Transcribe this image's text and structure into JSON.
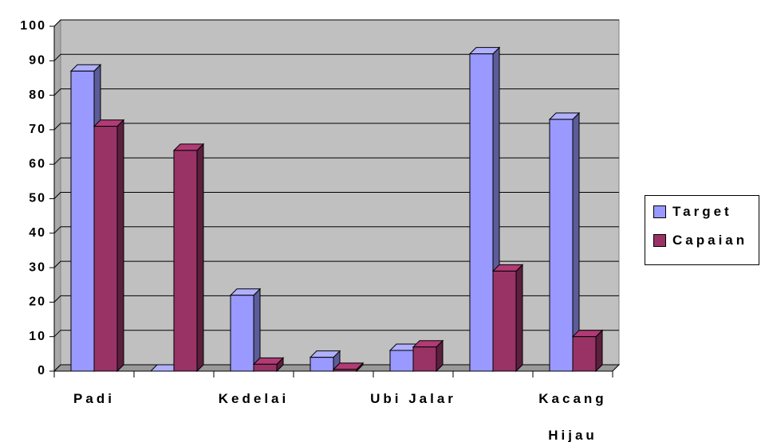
{
  "chart_data": {
    "type": "bar",
    "categories": [
      "Padi",
      null,
      "Kedelai",
      null,
      "Ubi Jalar",
      null,
      "Kacang Hijau"
    ],
    "series": [
      {
        "name": "Target",
        "color": "#9999ff",
        "values": [
          87,
          0,
          22,
          4,
          6,
          92,
          73
        ]
      },
      {
        "name": "Capaian",
        "color": "#993366",
        "values": [
          71,
          64,
          2,
          0.5,
          7,
          29,
          10
        ]
      }
    ],
    "ylim": [
      0,
      100
    ],
    "yticks": [
      0,
      10,
      20,
      30,
      40,
      50,
      60,
      70,
      80,
      90,
      100
    ],
    "grid": true,
    "legend": "right"
  }
}
